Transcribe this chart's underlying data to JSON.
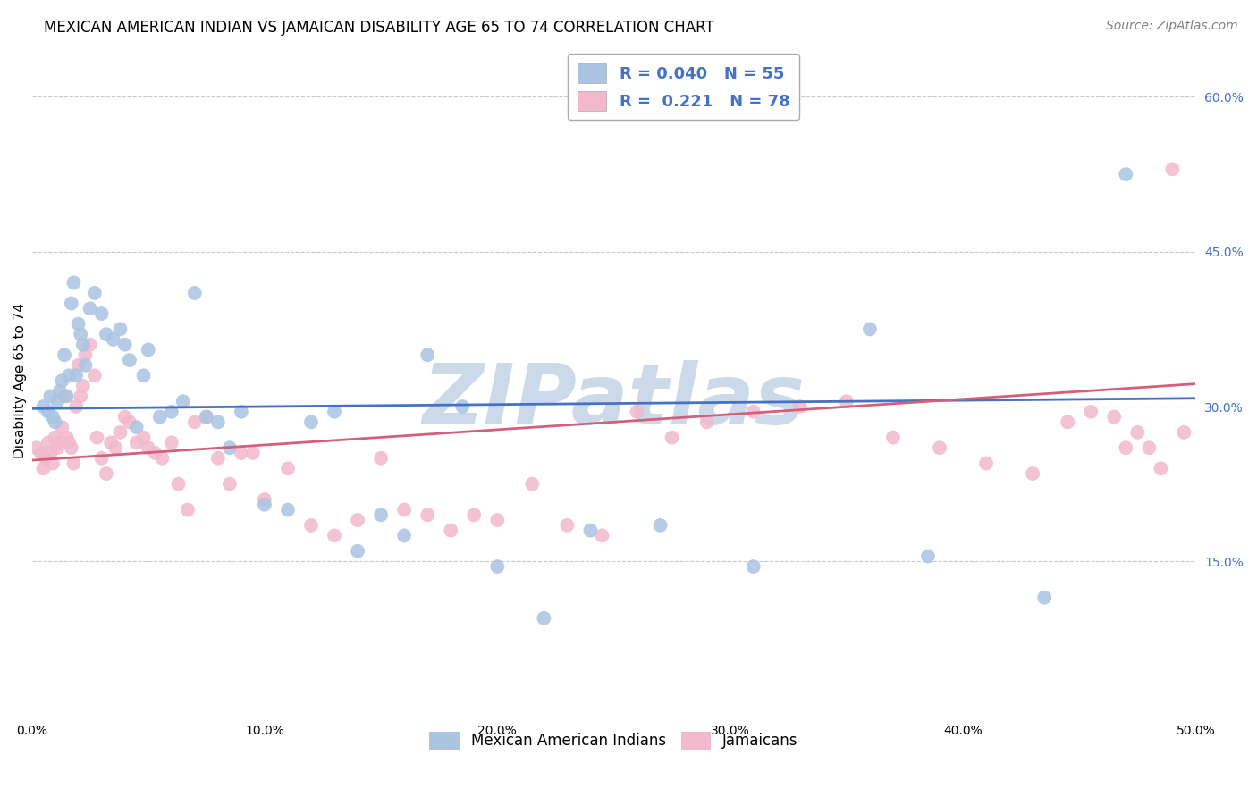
{
  "title": "MEXICAN AMERICAN INDIAN VS JAMAICAN DISABILITY AGE 65 TO 74 CORRELATION CHART",
  "source": "Source: ZipAtlas.com",
  "ylabel": "Disability Age 65 to 74",
  "watermark": "ZIPatlas",
  "xlim": [
    0.0,
    0.5
  ],
  "ylim": [
    0.0,
    0.65
  ],
  "xticks": [
    0.0,
    0.1,
    0.2,
    0.3,
    0.4,
    0.5
  ],
  "yticks_right": [
    0.15,
    0.3,
    0.45,
    0.6
  ],
  "ytick_labels_right": [
    "15.0%",
    "30.0%",
    "45.0%",
    "60.0%"
  ],
  "xtick_labels": [
    "0.0%",
    "10.0%",
    "20.0%",
    "30.0%",
    "40.0%",
    "50.0%"
  ],
  "blue_R": 0.04,
  "blue_N": 55,
  "pink_R": 0.221,
  "pink_N": 78,
  "blue_name": "Mexican American Indians",
  "pink_name": "Jamaicans",
  "blue_color": "#aac4e2",
  "pink_color": "#f2b8cc",
  "blue_line_color": "#4472c4",
  "pink_line_color": "#d45f7a",
  "blue_line_start_y": 0.298,
  "blue_line_end_y": 0.308,
  "pink_line_start_y": 0.248,
  "pink_line_end_y": 0.322,
  "title_fontsize": 12,
  "source_fontsize": 10,
  "axis_fontsize": 11,
  "tick_fontsize": 10,
  "legend_fontsize": 13,
  "bg_color": "#ffffff",
  "grid_color": "#c8c8c8",
  "watermark_color": "#ccd9e8",
  "right_tick_color": "#4472c4",
  "blue_x": [
    0.005,
    0.007,
    0.008,
    0.009,
    0.01,
    0.011,
    0.012,
    0.013,
    0.014,
    0.015,
    0.016,
    0.017,
    0.018,
    0.019,
    0.02,
    0.021,
    0.022,
    0.023,
    0.025,
    0.027,
    0.03,
    0.032,
    0.035,
    0.038,
    0.04,
    0.042,
    0.045,
    0.048,
    0.05,
    0.055,
    0.06,
    0.065,
    0.07,
    0.075,
    0.08,
    0.085,
    0.09,
    0.1,
    0.11,
    0.12,
    0.13,
    0.14,
    0.15,
    0.16,
    0.17,
    0.185,
    0.2,
    0.22,
    0.24,
    0.27,
    0.31,
    0.36,
    0.385,
    0.435,
    0.47
  ],
  "blue_y": [
    0.3,
    0.295,
    0.31,
    0.29,
    0.285,
    0.305,
    0.315,
    0.325,
    0.35,
    0.31,
    0.33,
    0.4,
    0.42,
    0.33,
    0.38,
    0.37,
    0.36,
    0.34,
    0.395,
    0.41,
    0.39,
    0.37,
    0.365,
    0.375,
    0.36,
    0.345,
    0.28,
    0.33,
    0.355,
    0.29,
    0.295,
    0.305,
    0.41,
    0.29,
    0.285,
    0.26,
    0.295,
    0.205,
    0.2,
    0.285,
    0.295,
    0.16,
    0.195,
    0.175,
    0.35,
    0.3,
    0.145,
    0.095,
    0.18,
    0.185,
    0.145,
    0.375,
    0.155,
    0.115,
    0.525
  ],
  "pink_x": [
    0.002,
    0.004,
    0.005,
    0.006,
    0.007,
    0.008,
    0.009,
    0.01,
    0.011,
    0.012,
    0.013,
    0.014,
    0.015,
    0.016,
    0.017,
    0.018,
    0.019,
    0.02,
    0.021,
    0.022,
    0.023,
    0.025,
    0.027,
    0.028,
    0.03,
    0.032,
    0.034,
    0.036,
    0.038,
    0.04,
    0.042,
    0.045,
    0.048,
    0.05,
    0.053,
    0.056,
    0.06,
    0.063,
    0.067,
    0.07,
    0.075,
    0.08,
    0.085,
    0.09,
    0.095,
    0.1,
    0.11,
    0.12,
    0.13,
    0.14,
    0.15,
    0.16,
    0.17,
    0.18,
    0.19,
    0.2,
    0.215,
    0.23,
    0.245,
    0.26,
    0.275,
    0.29,
    0.31,
    0.33,
    0.35,
    0.37,
    0.39,
    0.41,
    0.43,
    0.445,
    0.455,
    0.465,
    0.47,
    0.475,
    0.48,
    0.485,
    0.49,
    0.495
  ],
  "pink_y": [
    0.26,
    0.255,
    0.24,
    0.25,
    0.265,
    0.255,
    0.245,
    0.27,
    0.26,
    0.265,
    0.28,
    0.31,
    0.27,
    0.265,
    0.26,
    0.245,
    0.3,
    0.34,
    0.31,
    0.32,
    0.35,
    0.36,
    0.33,
    0.27,
    0.25,
    0.235,
    0.265,
    0.26,
    0.275,
    0.29,
    0.285,
    0.265,
    0.27,
    0.26,
    0.255,
    0.25,
    0.265,
    0.225,
    0.2,
    0.285,
    0.29,
    0.25,
    0.225,
    0.255,
    0.255,
    0.21,
    0.24,
    0.185,
    0.175,
    0.19,
    0.25,
    0.2,
    0.195,
    0.18,
    0.195,
    0.19,
    0.225,
    0.185,
    0.175,
    0.295,
    0.27,
    0.285,
    0.295,
    0.3,
    0.305,
    0.27,
    0.26,
    0.245,
    0.235,
    0.285,
    0.295,
    0.29,
    0.26,
    0.275,
    0.26,
    0.24,
    0.53,
    0.275
  ]
}
